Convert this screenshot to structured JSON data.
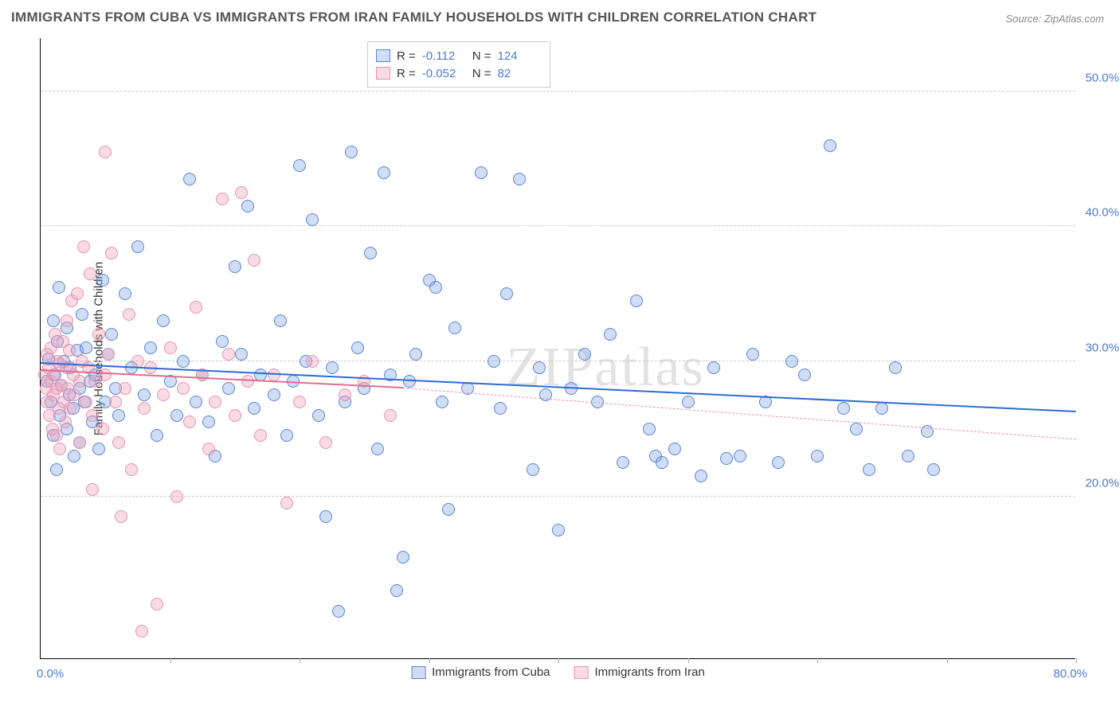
{
  "title": "IMMIGRANTS FROM CUBA VS IMMIGRANTS FROM IRAN FAMILY HOUSEHOLDS WITH CHILDREN CORRELATION CHART",
  "source": "Source: ZipAtlas.com",
  "watermark_a": "ZIP",
  "watermark_b": "atlas",
  "y_axis_title": "Family Households with Children",
  "chart": {
    "type": "scatter",
    "background_color": "#ffffff",
    "grid_color": "#cccccc",
    "axis_color": "#000000",
    "xlim": [
      0,
      80
    ],
    "ylim": [
      8,
      54
    ],
    "x_tick_positions": [
      0,
      10,
      20,
      30,
      40,
      50,
      60,
      70,
      80
    ],
    "x_label_min": "0.0%",
    "x_label_max": "80.0%",
    "y_grid": [
      {
        "value": 20,
        "label": "20.0%"
      },
      {
        "value": 30,
        "label": "30.0%"
      },
      {
        "value": 40,
        "label": "40.0%"
      },
      {
        "value": 50,
        "label": "50.0%"
      }
    ],
    "y_label_color": "#4a7bd8",
    "x_label_color": "#4a7bd8",
    "y_label_fontsize": 15,
    "title_fontsize": 17,
    "marker_radius": 8,
    "marker_stroke_width": 1,
    "series": [
      {
        "name": "Immigrants from Cuba",
        "fill": "rgba(130,165,230,0.38)",
        "stroke": "#5b85d6",
        "R": "-0.112",
        "N": "124",
        "trend": {
          "x1": 0,
          "y1": 29.8,
          "x2": 80,
          "y2": 26.2,
          "color": "#2e6bd6",
          "width": 2
        },
        "points": [
          [
            0.5,
            28.5
          ],
          [
            0.6,
            30.2
          ],
          [
            0.8,
            27.0
          ],
          [
            1.0,
            33.0
          ],
          [
            1.0,
            24.5
          ],
          [
            1.1,
            29.0
          ],
          [
            1.2,
            22.0
          ],
          [
            1.3,
            31.5
          ],
          [
            1.4,
            35.5
          ],
          [
            1.5,
            26.0
          ],
          [
            1.6,
            28.2
          ],
          [
            1.8,
            30.0
          ],
          [
            2.0,
            25.0
          ],
          [
            2.0,
            32.5
          ],
          [
            2.2,
            27.5
          ],
          [
            2.3,
            29.5
          ],
          [
            2.5,
            26.5
          ],
          [
            2.6,
            23.0
          ],
          [
            2.8,
            30.8
          ],
          [
            3.0,
            24.0
          ],
          [
            3.0,
            28.0
          ],
          [
            3.2,
            33.5
          ],
          [
            3.4,
            27.0
          ],
          [
            3.5,
            31.0
          ],
          [
            3.8,
            28.5
          ],
          [
            4.0,
            25.5
          ],
          [
            4.2,
            29.0
          ],
          [
            4.5,
            23.5
          ],
          [
            4.8,
            36.0
          ],
          [
            5.0,
            27.0
          ],
          [
            5.2,
            30.5
          ],
          [
            5.5,
            32.0
          ],
          [
            5.8,
            28.0
          ],
          [
            6.0,
            26.0
          ],
          [
            6.5,
            35.0
          ],
          [
            7.0,
            29.5
          ],
          [
            7.5,
            38.5
          ],
          [
            8.0,
            27.5
          ],
          [
            8.5,
            31.0
          ],
          [
            9.0,
            24.5
          ],
          [
            9.5,
            33.0
          ],
          [
            10.0,
            28.5
          ],
          [
            10.5,
            26.0
          ],
          [
            11.0,
            30.0
          ],
          [
            11.5,
            43.5
          ],
          [
            12.0,
            27.0
          ],
          [
            12.5,
            29.0
          ],
          [
            13.0,
            25.5
          ],
          [
            13.5,
            23.0
          ],
          [
            14.0,
            31.5
          ],
          [
            14.5,
            28.0
          ],
          [
            15.0,
            37.0
          ],
          [
            15.5,
            30.5
          ],
          [
            16.0,
            41.5
          ],
          [
            16.5,
            26.5
          ],
          [
            17.0,
            29.0
          ],
          [
            18.0,
            27.5
          ],
          [
            18.5,
            33.0
          ],
          [
            19.0,
            24.5
          ],
          [
            19.5,
            28.5
          ],
          [
            20.0,
            44.5
          ],
          [
            20.5,
            30.0
          ],
          [
            21.0,
            40.5
          ],
          [
            21.5,
            26.0
          ],
          [
            22.0,
            18.5
          ],
          [
            22.5,
            29.5
          ],
          [
            23.0,
            11.5
          ],
          [
            23.5,
            27.0
          ],
          [
            24.0,
            45.5
          ],
          [
            24.5,
            31.0
          ],
          [
            25.0,
            28.0
          ],
          [
            25.5,
            38.0
          ],
          [
            26.0,
            23.5
          ],
          [
            26.5,
            44.0
          ],
          [
            27.0,
            29.0
          ],
          [
            27.5,
            13.0
          ],
          [
            28.0,
            15.5
          ],
          [
            28.5,
            28.5
          ],
          [
            29.0,
            30.5
          ],
          [
            30.0,
            36.0
          ],
          [
            30.5,
            35.5
          ],
          [
            31.0,
            27.0
          ],
          [
            31.5,
            19.0
          ],
          [
            32.0,
            32.5
          ],
          [
            33.0,
            28.0
          ],
          [
            34.0,
            44.0
          ],
          [
            35.0,
            30.0
          ],
          [
            35.5,
            26.5
          ],
          [
            36.0,
            35.0
          ],
          [
            37.0,
            43.5
          ],
          [
            38.0,
            22.0
          ],
          [
            38.5,
            29.5
          ],
          [
            39.0,
            27.5
          ],
          [
            40.0,
            17.5
          ],
          [
            41.0,
            28.0
          ],
          [
            42.0,
            30.5
          ],
          [
            43.0,
            27.0
          ],
          [
            44.0,
            32.0
          ],
          [
            45.0,
            22.5
          ],
          [
            46.0,
            34.5
          ],
          [
            47.0,
            25.0
          ],
          [
            47.5,
            23.0
          ],
          [
            48.0,
            22.5
          ],
          [
            49.0,
            23.5
          ],
          [
            50.0,
            27.0
          ],
          [
            51.0,
            21.5
          ],
          [
            52.0,
            29.5
          ],
          [
            53.0,
            22.8
          ],
          [
            54.0,
            23.0
          ],
          [
            55.0,
            30.5
          ],
          [
            56.0,
            27.0
          ],
          [
            57.0,
            22.5
          ],
          [
            58.0,
            30.0
          ],
          [
            59.0,
            29.0
          ],
          [
            60.0,
            23.0
          ],
          [
            61.0,
            46.0
          ],
          [
            62.0,
            26.5
          ],
          [
            63.0,
            25.0
          ],
          [
            64.0,
            22.0
          ],
          [
            65.0,
            26.5
          ],
          [
            66.0,
            29.5
          ],
          [
            67.0,
            23.0
          ],
          [
            68.5,
            24.8
          ],
          [
            69.0,
            22.0
          ]
        ]
      },
      {
        "name": "Immigrants from Iran",
        "fill": "rgba(240,160,185,0.38)",
        "stroke": "#e892af",
        "R": "-0.052",
        "N": "82",
        "trend_solid": {
          "x1": 0,
          "y1": 29.3,
          "x2": 28,
          "y2": 28.0,
          "color": "#e56b92",
          "width": 2
        },
        "trend_dash": {
          "x1": 28,
          "y1": 28.0,
          "x2": 80,
          "y2": 24.2,
          "color": "#e892af",
          "width": 1.5
        },
        "points": [
          [
            0.3,
            29.0
          ],
          [
            0.4,
            28.0
          ],
          [
            0.5,
            30.5
          ],
          [
            0.5,
            27.0
          ],
          [
            0.6,
            29.5
          ],
          [
            0.7,
            26.0
          ],
          [
            0.8,
            31.0
          ],
          [
            0.8,
            28.5
          ],
          [
            0.9,
            25.0
          ],
          [
            1.0,
            29.0
          ],
          [
            1.0,
            27.5
          ],
          [
            1.1,
            32.0
          ],
          [
            1.2,
            28.0
          ],
          [
            1.2,
            24.5
          ],
          [
            1.3,
            30.0
          ],
          [
            1.4,
            26.5
          ],
          [
            1.5,
            29.8
          ],
          [
            1.5,
            23.5
          ],
          [
            1.6,
            28.2
          ],
          [
            1.7,
            31.5
          ],
          [
            1.8,
            27.0
          ],
          [
            1.9,
            25.5
          ],
          [
            2.0,
            29.5
          ],
          [
            2.0,
            33.0
          ],
          [
            2.1,
            28.0
          ],
          [
            2.2,
            30.8
          ],
          [
            2.3,
            26.5
          ],
          [
            2.4,
            34.5
          ],
          [
            2.5,
            29.0
          ],
          [
            2.6,
            27.5
          ],
          [
            2.8,
            35.0
          ],
          [
            3.0,
            28.5
          ],
          [
            3.0,
            24.0
          ],
          [
            3.2,
            30.0
          ],
          [
            3.3,
            38.5
          ],
          [
            3.5,
            27.0
          ],
          [
            3.7,
            29.5
          ],
          [
            3.8,
            36.5
          ],
          [
            4.0,
            26.0
          ],
          [
            4.0,
            20.5
          ],
          [
            4.2,
            28.5
          ],
          [
            4.5,
            32.0
          ],
          [
            4.8,
            25.0
          ],
          [
            5.0,
            29.0
          ],
          [
            5.0,
            45.5
          ],
          [
            5.2,
            30.5
          ],
          [
            5.5,
            38.0
          ],
          [
            5.8,
            27.0
          ],
          [
            6.0,
            24.0
          ],
          [
            6.2,
            18.5
          ],
          [
            6.5,
            28.0
          ],
          [
            6.8,
            33.5
          ],
          [
            7.0,
            22.0
          ],
          [
            7.5,
            30.0
          ],
          [
            7.8,
            10.0
          ],
          [
            8.0,
            26.5
          ],
          [
            8.5,
            29.5
          ],
          [
            9.0,
            12.0
          ],
          [
            9.5,
            27.5
          ],
          [
            10.0,
            31.0
          ],
          [
            10.5,
            20.0
          ],
          [
            11.0,
            28.0
          ],
          [
            11.5,
            25.5
          ],
          [
            12.0,
            34.0
          ],
          [
            12.5,
            29.0
          ],
          [
            13.0,
            23.5
          ],
          [
            13.5,
            27.0
          ],
          [
            14.0,
            42.0
          ],
          [
            14.5,
            30.5
          ],
          [
            15.0,
            26.0
          ],
          [
            15.5,
            42.5
          ],
          [
            16.0,
            28.5
          ],
          [
            16.5,
            37.5
          ],
          [
            17.0,
            24.5
          ],
          [
            18.0,
            29.0
          ],
          [
            19.0,
            19.5
          ],
          [
            20.0,
            27.0
          ],
          [
            21.0,
            30.0
          ],
          [
            22.0,
            24.0
          ],
          [
            23.5,
            27.5
          ],
          [
            25.0,
            28.5
          ],
          [
            27.0,
            26.0
          ]
        ]
      }
    ]
  },
  "stats_labels": {
    "R": "R =",
    "N": "N ="
  },
  "legend": {
    "series1": "Immigrants from Cuba",
    "series2": "Immigrants from Iran"
  }
}
